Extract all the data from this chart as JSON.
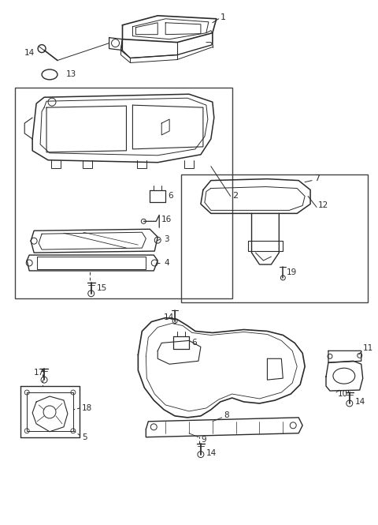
{
  "bg_color": "#ffffff",
  "line_color": "#2a2a2a",
  "fig_width": 4.8,
  "fig_height": 6.65,
  "dpi": 100
}
